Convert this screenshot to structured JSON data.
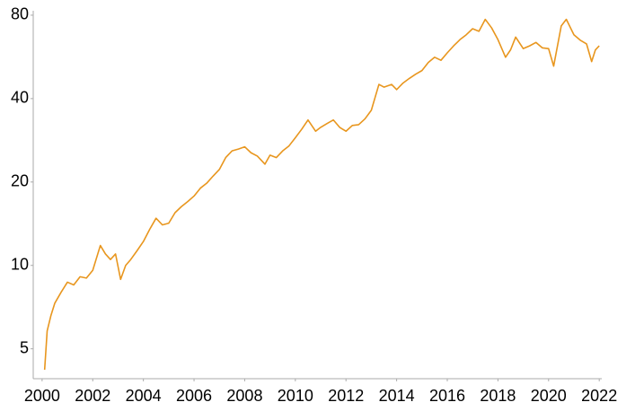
{
  "chart_data": {
    "type": "line",
    "yscale": "log",
    "color": "#e8961e",
    "x": [
      2000.1,
      2000.2,
      2000.35,
      2000.5,
      2000.75,
      2001,
      2001.25,
      2001.5,
      2001.75,
      2002,
      2002.3,
      2002.5,
      2002.7,
      2002.9,
      2003.1,
      2003.3,
      2003.5,
      2003.75,
      2004,
      2004.25,
      2004.5,
      2004.75,
      2005,
      2005.25,
      2005.5,
      2005.75,
      2006,
      2006.25,
      2006.5,
      2006.75,
      2007,
      2007.25,
      2007.5,
      2007.75,
      2008,
      2008.25,
      2008.5,
      2008.8,
      2009,
      2009.25,
      2009.5,
      2009.75,
      2010,
      2010.25,
      2010.5,
      2010.8,
      2011,
      2011.25,
      2011.5,
      2011.75,
      2012,
      2012.25,
      2012.5,
      2012.75,
      2013,
      2013.3,
      2013.5,
      2013.8,
      2014,
      2014.25,
      2014.5,
      2014.75,
      2015,
      2015.25,
      2015.5,
      2015.75,
      2016,
      2016.25,
      2016.5,
      2016.75,
      2017,
      2017.25,
      2017.5,
      2017.75,
      2018,
      2018.3,
      2018.5,
      2018.7,
      2019,
      2019.25,
      2019.5,
      2019.75,
      2020,
      2020.2,
      2020.5,
      2020.7,
      2021,
      2021.25,
      2021.5,
      2021.7,
      2021.85,
      2022
    ],
    "values": [
      4.2,
      5.8,
      6.6,
      7.3,
      8.0,
      8.7,
      8.5,
      9.1,
      9.0,
      9.6,
      11.8,
      11.0,
      10.5,
      11.0,
      8.9,
      10.0,
      10.5,
      11.3,
      12.2,
      13.5,
      14.8,
      14.0,
      14.2,
      15.5,
      16.3,
      17.0,
      17.8,
      19.0,
      19.8,
      21.0,
      22.2,
      24.5,
      25.9,
      26.3,
      26.8,
      25.5,
      24.8,
      23.2,
      25.0,
      24.5,
      25.9,
      27.0,
      28.9,
      31.0,
      33.5,
      30.5,
      31.5,
      32.5,
      33.5,
      31.5,
      30.5,
      32.0,
      32.2,
      33.8,
      36.3,
      45.0,
      44.0,
      45.0,
      43.1,
      45.5,
      47.3,
      49.0,
      50.5,
      54.0,
      56.4,
      55.0,
      58.5,
      62.0,
      65.3,
      68.0,
      71.5,
      70.0,
      77.3,
      72.0,
      65.3,
      56.4,
      60.0,
      66.7,
      60.6,
      62.0,
      63.8,
      61.0,
      60.6,
      52.4,
      73.2,
      77.3,
      68.0,
      65.0,
      63.0,
      54.4,
      60.0,
      62.0
    ],
    "xlim": [
      1999.65,
      2022.1
    ],
    "ylim": [
      3.9,
      83
    ],
    "xticks": [
      2000,
      2002,
      2004,
      2006,
      2008,
      2010,
      2012,
      2014,
      2016,
      2018,
      2020,
      2022
    ],
    "yticks": [
      5,
      10,
      20,
      40,
      80
    ]
  }
}
